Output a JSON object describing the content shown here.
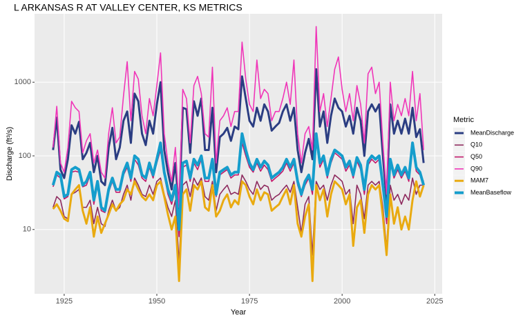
{
  "chart_data": {
    "type": "line",
    "title": "L ARKANSAS R AT VALLEY CENTER, KS  METRICS",
    "x_label": "Year",
    "y_label": "Discharge (ft³/s)",
    "legend_title": "Metric",
    "log_y": true,
    "grid": true,
    "legend_position": "right",
    "xlim": [
      1917,
      2027
    ],
    "xticks": [
      1925,
      1950,
      1975,
      2000,
      2025
    ],
    "ylim": [
      1.34,
      8490
    ],
    "yticks": [
      10,
      100,
      1000
    ],
    "x": [
      1922,
      1923,
      1924,
      1925,
      1926,
      1927,
      1928,
      1929,
      1930,
      1931,
      1932,
      1933,
      1934,
      1935,
      1936,
      1937,
      1938,
      1939,
      1940,
      1941,
      1942,
      1943,
      1944,
      1945,
      1946,
      1947,
      1948,
      1949,
      1950,
      1951,
      1952,
      1953,
      1954,
      1955,
      1956,
      1957,
      1958,
      1959,
      1960,
      1961,
      1962,
      1963,
      1964,
      1965,
      1966,
      1967,
      1968,
      1969,
      1970,
      1971,
      1972,
      1973,
      1974,
      1975,
      1976,
      1977,
      1978,
      1979,
      1980,
      1981,
      1982,
      1983,
      1984,
      1985,
      1986,
      1987,
      1988,
      1989,
      1990,
      1991,
      1992,
      1993,
      1994,
      1995,
      1996,
      1997,
      1998,
      1999,
      2000,
      2001,
      2002,
      2003,
      2004,
      2005,
      2006,
      2007,
      2008,
      2009,
      2010,
      2011,
      2012,
      2013,
      2014,
      2015,
      2016,
      2017,
      2018,
      2019,
      2020,
      2021,
      2022
    ],
    "series": [
      {
        "name": "MeanDischarge",
        "color": "#2b3d82",
        "values": [
          120,
          330,
          65,
          50,
          90,
          260,
          200,
          290,
          90,
          110,
          150,
          60,
          100,
          45,
          40,
          130,
          240,
          90,
          130,
          300,
          400,
          150,
          700,
          550,
          200,
          140,
          300,
          200,
          500,
          1000,
          120,
          60,
          35,
          80,
          18,
          450,
          430,
          110,
          550,
          350,
          600,
          120,
          120,
          450,
          60,
          180,
          200,
          240,
          160,
          250,
          230,
          1200,
          600,
          300,
          250,
          450,
          300,
          500,
          400,
          220,
          250,
          280,
          400,
          500,
          300,
          450,
          120,
          60,
          110,
          170,
          90,
          1500,
          250,
          400,
          150,
          350,
          600,
          450,
          400,
          250,
          350,
          200,
          450,
          300,
          100,
          400,
          500,
          400,
          500,
          100,
          25,
          500,
          200,
          300,
          200,
          320,
          200,
          450,
          180,
          230,
          80
        ]
      },
      {
        "name": "Q10",
        "color": "#8e2a5e",
        "values": [
          20,
          28,
          25,
          15,
          14,
          30,
          32,
          35,
          20,
          20,
          25,
          12,
          20,
          12,
          11,
          18,
          25,
          18,
          20,
          30,
          40,
          25,
          50,
          40,
          30,
          28,
          40,
          30,
          45,
          50,
          30,
          20,
          15,
          25,
          3.5,
          40,
          45,
          28,
          50,
          40,
          50,
          28,
          25,
          45,
          18,
          30,
          35,
          40,
          30,
          32,
          30,
          55,
          45,
          35,
          30,
          45,
          35,
          40,
          38,
          25,
          28,
          30,
          35,
          40,
          32,
          45,
          20,
          9,
          22,
          28,
          4.5,
          45,
          35,
          40,
          25,
          40,
          55,
          50,
          45,
          30,
          35,
          12,
          40,
          30,
          14,
          40,
          45,
          40,
          45,
          20,
          5.5,
          40,
          25,
          30,
          22,
          30,
          25,
          50,
          30,
          40,
          40
        ]
      },
      {
        "name": "Q50",
        "color": "#c2186b",
        "values": [
          38,
          55,
          50,
          26,
          28,
          60,
          62,
          60,
          38,
          40,
          55,
          22,
          40,
          18,
          17,
          32,
          45,
          32,
          32,
          55,
          70,
          45,
          90,
          75,
          50,
          45,
          70,
          50,
          80,
          120,
          55,
          30,
          22,
          35,
          8,
          70,
          75,
          45,
          80,
          65,
          90,
          45,
          45,
          80,
          28,
          55,
          60,
          65,
          50,
          55,
          55,
          150,
          100,
          70,
          60,
          80,
          62,
          75,
          65,
          45,
          50,
          55,
          62,
          80,
          62,
          80,
          40,
          28,
          40,
          50,
          30,
          170,
          70,
          90,
          50,
          80,
          110,
          100,
          90,
          62,
          75,
          50,
          85,
          65,
          30,
          75,
          90,
          80,
          90,
          35,
          12,
          80,
          50,
          65,
          50,
          62,
          45,
          130,
          62,
          55,
          45
        ]
      },
      {
        "name": "Q90",
        "color": "#f035b8",
        "values": [
          130,
          470,
          80,
          60,
          130,
          550,
          450,
          400,
          110,
          160,
          200,
          80,
          120,
          60,
          50,
          200,
          450,
          150,
          180,
          650,
          1900,
          300,
          1400,
          1100,
          350,
          200,
          600,
          350,
          900,
          2500,
          200,
          80,
          45,
          130,
          20,
          800,
          600,
          150,
          900,
          1200,
          700,
          200,
          180,
          1600,
          80,
          300,
          350,
          450,
          250,
          400,
          400,
          3500,
          1100,
          500,
          400,
          2000,
          600,
          800,
          700,
          300,
          400,
          400,
          600,
          1000,
          500,
          2000,
          200,
          80,
          200,
          250,
          120,
          5700,
          400,
          700,
          250,
          600,
          1500,
          2200,
          800,
          400,
          700,
          300,
          900,
          500,
          150,
          1300,
          1600,
          700,
          1000,
          150,
          30,
          1000,
          300,
          500,
          350,
          600,
          350,
          1400,
          300,
          700,
          120
        ]
      },
      {
        "name": "MAM7",
        "color": "#e9aa10",
        "values": [
          19,
          22,
          18,
          14,
          13,
          30,
          35,
          40,
          18,
          12,
          20,
          8,
          15,
          9,
          12,
          16,
          22,
          18,
          22,
          25,
          35,
          30,
          45,
          35,
          28,
          25,
          30,
          25,
          40,
          45,
          28,
          16,
          10,
          15,
          2,
          30,
          35,
          18,
          40,
          35,
          45,
          20,
          18,
          40,
          15,
          18,
          25,
          30,
          20,
          25,
          22,
          45,
          40,
          28,
          22,
          35,
          25,
          32,
          30,
          18,
          20,
          22,
          28,
          35,
          22,
          40,
          12,
          8,
          15,
          22,
          2,
          40,
          25,
          35,
          15,
          30,
          45,
          40,
          35,
          22,
          30,
          6,
          20,
          25,
          9,
          30,
          40,
          35,
          40,
          15,
          4.5,
          30,
          12,
          20,
          10,
          15,
          10,
          25,
          45,
          28,
          40
        ]
      },
      {
        "name": "MeanBaseflow",
        "color": "#159dcc",
        "values": [
          40,
          60,
          55,
          28,
          30,
          65,
          70,
          65,
          40,
          45,
          60,
          25,
          45,
          20,
          18,
          35,
          50,
          35,
          35,
          60,
          80,
          50,
          100,
          90,
          55,
          50,
          80,
          55,
          90,
          150,
          60,
          35,
          25,
          40,
          10,
          80,
          85,
          50,
          90,
          75,
          100,
          50,
          50,
          90,
          30,
          60,
          65,
          70,
          55,
          60,
          60,
          200,
          120,
          80,
          65,
          90,
          70,
          85,
          75,
          50,
          55,
          60,
          70,
          90,
          70,
          90,
          45,
          30,
          45,
          55,
          35,
          200,
          80,
          100,
          55,
          90,
          120,
          110,
          100,
          70,
          85,
          55,
          95,
          75,
          35,
          85,
          100,
          90,
          100,
          40,
          15,
          90,
          55,
          75,
          55,
          70,
          50,
          150,
          70,
          60,
          40
        ]
      }
    ]
  }
}
